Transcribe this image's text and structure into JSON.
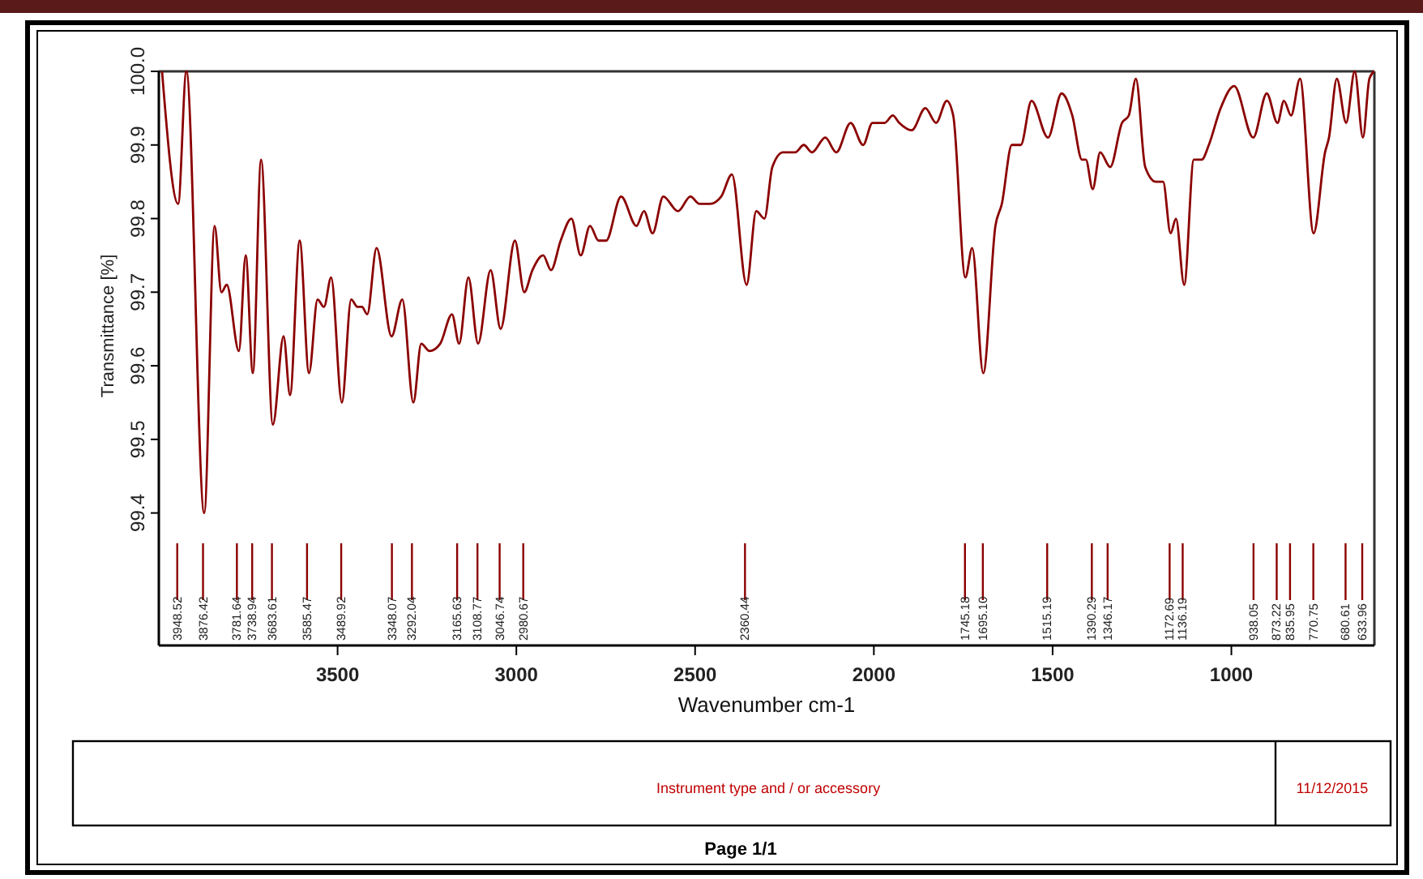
{
  "chart_data": {
    "type": "line",
    "xlabel": "Wavenumber cm-1",
    "ylabel": "Transmittance [%]",
    "xlim": [
      4000,
      600
    ],
    "xticks": [
      3500,
      3000,
      2500,
      2000,
      1500,
      1000
    ],
    "ylim": [
      99.22,
      100.0
    ],
    "yticks": [
      99.4,
      99.5,
      99.6,
      99.7,
      99.8,
      99.9,
      {
        "value": 100,
        "label": "100.0"
      }
    ],
    "grid": false,
    "marker": "none",
    "line_style": "solid",
    "series": [
      {
        "color": "#8b0000",
        "x": [
          3991,
          3946,
          3923,
          3873,
          3844,
          3825,
          3810,
          3776,
          3757,
          3737,
          3714,
          3681,
          3651,
          3633,
          3606,
          3580,
          3556,
          3538,
          3518,
          3488,
          3462,
          3444,
          3432,
          3417,
          3391,
          3349,
          3319,
          3288,
          3266,
          3243,
          3213,
          3180,
          3160,
          3134,
          3107,
          3072,
          3044,
          3004,
          2978,
          2955,
          2925,
          2903,
          2876,
          2846,
          2820,
          2794,
          2770,
          2749,
          2707,
          2664,
          2643,
          2619,
          2589,
          2548,
          2513,
          2488,
          2458,
          2427,
          2397,
          2356,
          2329,
          2306,
          2284,
          2254,
          2220,
          2196,
          2173,
          2136,
          2105,
          2065,
          2030,
          2004,
          1970,
          1947,
          1929,
          1894,
          1856,
          1826,
          1796,
          1778,
          1744,
          1725,
          1694,
          1660,
          1642,
          1614,
          1589,
          1559,
          1513,
          1475,
          1445,
          1418,
          1407,
          1388,
          1367,
          1339,
          1306,
          1287,
          1267,
          1241,
          1211,
          1191,
          1170,
          1155,
          1132,
          1105,
          1083,
          1063,
          1030,
          992,
          939,
          901,
          871,
          853,
          833,
          808,
          770,
          738,
          727,
          705,
          679,
          655,
          632,
          614,
          600
        ],
        "values": [
          100.0,
          99.82,
          100.0,
          99.4,
          99.79,
          99.7,
          99.71,
          99.62,
          99.75,
          99.59,
          99.88,
          99.52,
          99.64,
          99.56,
          99.77,
          99.59,
          99.69,
          99.68,
          99.72,
          99.55,
          99.69,
          99.68,
          99.68,
          99.67,
          99.76,
          99.64,
          99.69,
          99.55,
          99.63,
          99.62,
          99.63,
          99.67,
          99.63,
          99.72,
          99.63,
          99.73,
          99.65,
          99.77,
          99.7,
          99.73,
          99.75,
          99.73,
          99.77,
          99.8,
          99.75,
          99.79,
          99.77,
          99.77,
          99.83,
          99.79,
          99.81,
          99.78,
          99.83,
          99.81,
          99.83,
          99.82,
          99.82,
          99.83,
          99.86,
          99.71,
          99.81,
          99.8,
          99.87,
          99.89,
          99.89,
          99.9,
          99.89,
          99.91,
          99.89,
          99.93,
          99.9,
          99.93,
          99.93,
          99.94,
          99.93,
          99.92,
          99.95,
          99.93,
          99.96,
          99.94,
          99.72,
          99.76,
          99.59,
          99.79,
          99.82,
          99.9,
          99.9,
          99.96,
          99.91,
          99.97,
          99.94,
          99.88,
          99.88,
          99.84,
          99.89,
          99.87,
          99.93,
          99.94,
          99.99,
          99.87,
          99.85,
          99.85,
          99.78,
          99.8,
          99.71,
          99.88,
          99.88,
          99.9,
          99.95,
          99.98,
          99.91,
          99.97,
          99.93,
          99.96,
          99.94,
          99.99,
          99.78,
          99.89,
          99.91,
          99.99,
          99.93,
          100.0,
          99.91,
          99.99,
          100.0
        ]
      }
    ],
    "annotations": [
      {
        "text": "3948.52",
        "x": 3948.52
      },
      {
        "text": "3876.42",
        "x": 3876.42
      },
      {
        "text": "3781.64",
        "x": 3781.64
      },
      {
        "text": "3738.94",
        "x": 3738.94
      },
      {
        "text": "3683.61",
        "x": 3683.61
      },
      {
        "text": "3585.47",
        "x": 3585.47
      },
      {
        "text": "3489.92",
        "x": 3489.92
      },
      {
        "text": "3348.07",
        "x": 3348.07
      },
      {
        "text": "3292.04",
        "x": 3292.04
      },
      {
        "text": "3165.63",
        "x": 3165.63
      },
      {
        "text": "3108.77",
        "x": 3108.77
      },
      {
        "text": "3046.74",
        "x": 3046.74
      },
      {
        "text": "2980.67",
        "x": 2980.67
      },
      {
        "text": "2360.44",
        "x": 2360.44
      },
      {
        "text": "1745.18",
        "x": 1745.18
      },
      {
        "text": "1695.10",
        "x": 1695.1
      },
      {
        "text": "1515.19",
        "x": 1515.19
      },
      {
        "text": "1390.29",
        "x": 1390.29
      },
      {
        "text": "1346.17",
        "x": 1346.17
      },
      {
        "text": "1172.69",
        "x": 1172.69
      },
      {
        "text": "1136.19",
        "x": 1136.19
      },
      {
        "text": "938.05",
        "x": 938.05
      },
      {
        "text": "873.22",
        "x": 873.22
      },
      {
        "text": "835.95",
        "x": 835.95
      },
      {
        "text": "770.75",
        "x": 770.75
      },
      {
        "text": "680.61",
        "x": 680.61
      },
      {
        "text": "633.96",
        "x": 633.96
      },
      "Instrument type and / or accessory",
      "11/12/2015",
      "Page 1/1"
    ]
  }
}
